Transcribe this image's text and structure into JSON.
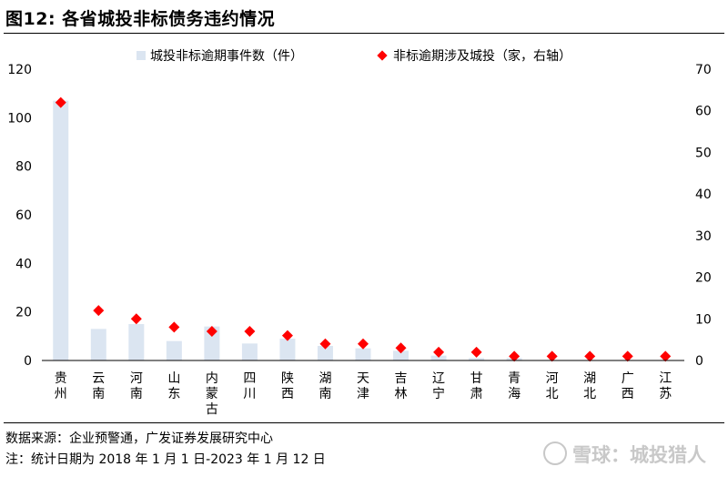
{
  "header": {
    "title": "图12:  各省城投非标债务违约情况"
  },
  "chart_data": {
    "type": "bar",
    "categories": [
      "贵州",
      "云南",
      "河南",
      "山东",
      "内蒙古",
      "四川",
      "陕西",
      "湖南",
      "天津",
      "吉林",
      "辽宁",
      "甘肃",
      "青海",
      "河北",
      "湖北",
      "广西",
      "江苏"
    ],
    "series": [
      {
        "name": "城投非标逾期事件数（件）",
        "type": "bar",
        "axis": "left",
        "color": "#dbe5f1",
        "values": [
          107,
          13,
          15,
          8,
          14,
          7,
          9,
          6,
          5,
          4,
          2,
          1,
          1,
          0,
          0,
          0,
          0
        ]
      },
      {
        "name": "非标逾期涉及城投（家，右轴）",
        "type": "scatter",
        "marker": "diamond",
        "axis": "right",
        "color": "#ff0000",
        "values": [
          62,
          12,
          10,
          8,
          7,
          7,
          6,
          4,
          4,
          3,
          2,
          2,
          1,
          1,
          1,
          1,
          1
        ]
      }
    ],
    "left_axis": {
      "ylim": [
        0,
        120
      ],
      "ticks": [
        "0",
        "20",
        "40",
        "60",
        "80",
        "100",
        "120"
      ]
    },
    "right_axis": {
      "ylim": [
        0,
        70
      ],
      "ticks": [
        "0",
        "10",
        "20",
        "30",
        "40",
        "50",
        "60",
        "70"
      ]
    },
    "legend_position": "top",
    "grid": false
  },
  "footer": {
    "source": "数据来源：企业预警通，广发证券发展研究中心",
    "note": "注：统计日期为 2018 年 1 月 1 日-2023 年 1 月 12 日"
  },
  "watermark": {
    "text": "雪球：城投猎人"
  }
}
